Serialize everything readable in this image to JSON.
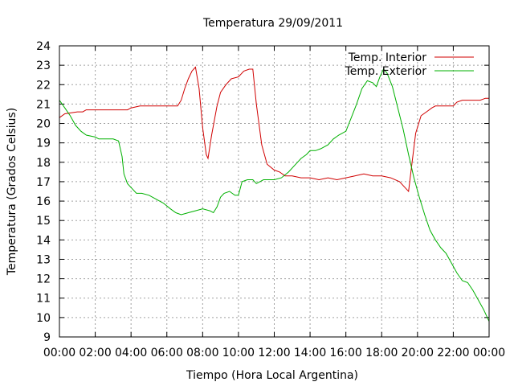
{
  "chart_data": {
    "type": "line",
    "title": "Temperatura 29/09/2011",
    "xlabel": "Tiempo (Hora Local Argentina)",
    "ylabel": "Temperatura (Grados Celsius)",
    "xlim": [
      0,
      24
    ],
    "ylim": [
      9,
      24
    ],
    "x_ticks": [
      {
        "value": 0,
        "label": "00:00"
      },
      {
        "value": 2,
        "label": "02:00"
      },
      {
        "value": 4,
        "label": "04:00"
      },
      {
        "value": 6,
        "label": "06:00"
      },
      {
        "value": 8,
        "label": "08:00"
      },
      {
        "value": 10,
        "label": "10:00"
      },
      {
        "value": 12,
        "label": "12:00"
      },
      {
        "value": 14,
        "label": "14:00"
      },
      {
        "value": 16,
        "label": "16:00"
      },
      {
        "value": 18,
        "label": "18:00"
      },
      {
        "value": 20,
        "label": "20:00"
      },
      {
        "value": 22,
        "label": "22:00"
      },
      {
        "value": 24,
        "label": "00:00"
      }
    ],
    "y_ticks": [
      9,
      10,
      11,
      12,
      13,
      14,
      15,
      16,
      17,
      18,
      19,
      20,
      21,
      22,
      23,
      24
    ],
    "grid": true,
    "legend_position": "top-right",
    "series": [
      {
        "name": "Temp. Interior",
        "color": "#d00000",
        "points": [
          [
            0,
            20.3
          ],
          [
            0.3,
            20.5
          ],
          [
            1.0,
            20.6
          ],
          [
            1.3,
            20.6
          ],
          [
            1.5,
            20.7
          ],
          [
            2.0,
            20.7
          ],
          [
            3.0,
            20.7
          ],
          [
            3.8,
            20.7
          ],
          [
            4.0,
            20.8
          ],
          [
            4.5,
            20.9
          ],
          [
            5.0,
            20.9
          ],
          [
            6.0,
            20.9
          ],
          [
            6.6,
            20.9
          ],
          [
            6.8,
            21.2
          ],
          [
            7.0,
            21.8
          ],
          [
            7.2,
            22.3
          ],
          [
            7.4,
            22.7
          ],
          [
            7.6,
            22.9
          ],
          [
            7.8,
            21.8
          ],
          [
            8.0,
            19.8
          ],
          [
            8.2,
            18.4
          ],
          [
            8.3,
            18.2
          ],
          [
            8.5,
            19.4
          ],
          [
            8.8,
            20.9
          ],
          [
            9.0,
            21.6
          ],
          [
            9.3,
            22.0
          ],
          [
            9.6,
            22.3
          ],
          [
            10.0,
            22.4
          ],
          [
            10.3,
            22.7
          ],
          [
            10.6,
            22.8
          ],
          [
            10.8,
            22.8
          ],
          [
            11.0,
            21.0
          ],
          [
            11.3,
            18.9
          ],
          [
            11.6,
            17.9
          ],
          [
            12.0,
            17.6
          ],
          [
            12.3,
            17.5
          ],
          [
            12.6,
            17.3
          ],
          [
            13.0,
            17.3
          ],
          [
            13.5,
            17.2
          ],
          [
            14.0,
            17.2
          ],
          [
            14.5,
            17.1
          ],
          [
            15.0,
            17.2
          ],
          [
            15.5,
            17.1
          ],
          [
            16.0,
            17.2
          ],
          [
            16.5,
            17.3
          ],
          [
            17.0,
            17.4
          ],
          [
            17.5,
            17.3
          ],
          [
            18.0,
            17.3
          ],
          [
            18.5,
            17.2
          ],
          [
            19.0,
            17.0
          ],
          [
            19.5,
            16.5
          ],
          [
            19.7,
            18.0
          ],
          [
            19.9,
            19.5
          ],
          [
            20.2,
            20.4
          ],
          [
            20.5,
            20.6
          ],
          [
            20.8,
            20.8
          ],
          [
            21.0,
            20.9
          ],
          [
            21.5,
            20.9
          ],
          [
            22.0,
            20.9
          ],
          [
            22.2,
            21.1
          ],
          [
            22.5,
            21.2
          ],
          [
            23.0,
            21.2
          ],
          [
            23.5,
            21.2
          ],
          [
            23.8,
            21.3
          ],
          [
            24.0,
            21.3
          ]
        ]
      },
      {
        "name": "Temp. Exterior",
        "color": "#00b000",
        "points": [
          [
            0,
            21.2
          ],
          [
            0.3,
            20.8
          ],
          [
            0.6,
            20.4
          ],
          [
            0.9,
            19.9
          ],
          [
            1.2,
            19.6
          ],
          [
            1.5,
            19.4
          ],
          [
            2.0,
            19.3
          ],
          [
            2.2,
            19.2
          ],
          [
            2.6,
            19.2
          ],
          [
            3.0,
            19.2
          ],
          [
            3.3,
            19.1
          ],
          [
            3.5,
            18.3
          ],
          [
            3.6,
            17.4
          ],
          [
            3.8,
            16.9
          ],
          [
            4.0,
            16.7
          ],
          [
            4.3,
            16.4
          ],
          [
            4.6,
            16.4
          ],
          [
            5.0,
            16.3
          ],
          [
            5.4,
            16.1
          ],
          [
            5.8,
            15.9
          ],
          [
            6.2,
            15.6
          ],
          [
            6.5,
            15.4
          ],
          [
            6.8,
            15.3
          ],
          [
            7.2,
            15.4
          ],
          [
            7.6,
            15.5
          ],
          [
            8.0,
            15.6
          ],
          [
            8.4,
            15.5
          ],
          [
            8.6,
            15.4
          ],
          [
            8.8,
            15.7
          ],
          [
            9.0,
            16.2
          ],
          [
            9.2,
            16.4
          ],
          [
            9.5,
            16.5
          ],
          [
            9.8,
            16.3
          ],
          [
            10.0,
            16.3
          ],
          [
            10.2,
            17.0
          ],
          [
            10.5,
            17.1
          ],
          [
            10.8,
            17.1
          ],
          [
            11.0,
            16.9
          ],
          [
            11.4,
            17.1
          ],
          [
            12.0,
            17.1
          ],
          [
            12.4,
            17.2
          ],
          [
            12.8,
            17.5
          ],
          [
            13.2,
            17.9
          ],
          [
            13.5,
            18.2
          ],
          [
            13.8,
            18.4
          ],
          [
            14.0,
            18.6
          ],
          [
            14.3,
            18.6
          ],
          [
            14.6,
            18.7
          ],
          [
            15.0,
            18.9
          ],
          [
            15.3,
            19.2
          ],
          [
            15.6,
            19.4
          ],
          [
            16.0,
            19.6
          ],
          [
            16.3,
            20.3
          ],
          [
            16.6,
            21.0
          ],
          [
            16.9,
            21.8
          ],
          [
            17.2,
            22.2
          ],
          [
            17.5,
            22.1
          ],
          [
            17.7,
            21.9
          ],
          [
            17.9,
            22.4
          ],
          [
            18.1,
            22.8
          ],
          [
            18.3,
            22.6
          ],
          [
            18.6,
            21.9
          ],
          [
            18.9,
            20.8
          ],
          [
            19.2,
            19.7
          ],
          [
            19.5,
            18.4
          ],
          [
            19.8,
            17.2
          ],
          [
            20.1,
            16.2
          ],
          [
            20.4,
            15.3
          ],
          [
            20.7,
            14.5
          ],
          [
            21.0,
            14.0
          ],
          [
            21.3,
            13.6
          ],
          [
            21.6,
            13.3
          ],
          [
            21.9,
            12.8
          ],
          [
            22.2,
            12.3
          ],
          [
            22.5,
            11.9
          ],
          [
            22.8,
            11.8
          ],
          [
            23.1,
            11.4
          ],
          [
            23.4,
            10.9
          ],
          [
            23.7,
            10.4
          ],
          [
            24.0,
            9.8
          ]
        ]
      }
    ]
  }
}
